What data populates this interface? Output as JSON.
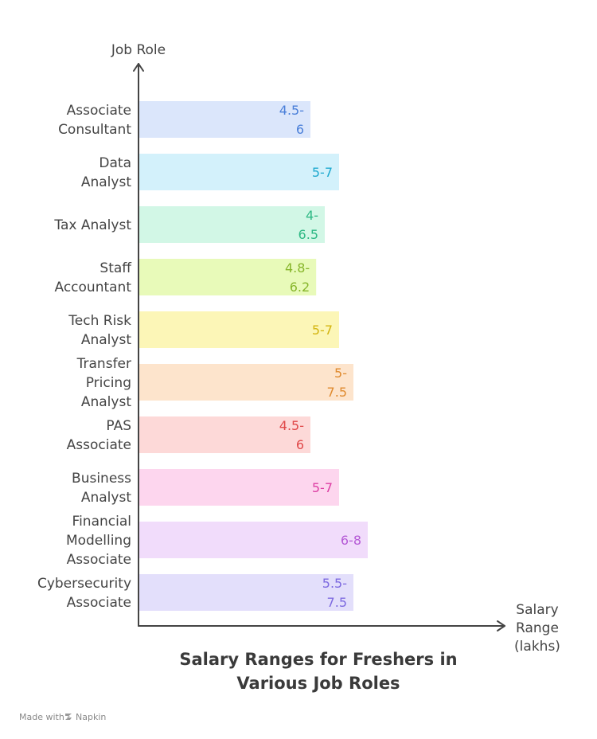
{
  "chart_data": {
    "type": "bar",
    "orientation": "horizontal",
    "title": "Salary Ranges for Freshers in Various Job Roles",
    "title_lines": [
      "Salary Ranges for Freshers in",
      "Various Job Roles"
    ],
    "ylabel": "Job Role",
    "xlabel": "Salary Range (lakhs)",
    "xlabel_lines": [
      "Salary",
      "Range",
      "(lakhs)"
    ],
    "grid": false,
    "categories": [
      {
        "lines": [
          "Associate",
          "Consultant"
        ],
        "label": "4.5-6",
        "label_lines": [
          "4.5-",
          "6"
        ],
        "low": 4.5,
        "high": 6,
        "color": "#4a7fd9",
        "fill": "#dbe6fb"
      },
      {
        "lines": [
          "Data",
          "Analyst"
        ],
        "label": "5-7",
        "label_lines": [
          "5-7"
        ],
        "low": 5,
        "high": 7,
        "color": "#1ea9cf",
        "fill": "#d3f1fb"
      },
      {
        "lines": [
          "Tax Analyst"
        ],
        "label": "4-6.5",
        "label_lines": [
          "4-",
          "6.5"
        ],
        "low": 4,
        "high": 6.5,
        "color": "#2fb985",
        "fill": "#d2f7e6"
      },
      {
        "lines": [
          "Staff",
          "Accountant"
        ],
        "label": "4.8-6.2",
        "label_lines": [
          "4.8-",
          "6.2"
        ],
        "low": 4.8,
        "high": 6.2,
        "color": "#86b52a",
        "fill": "#e8fab9"
      },
      {
        "lines": [
          "Tech Risk",
          "Analyst"
        ],
        "label": "5-7",
        "label_lines": [
          "5-7"
        ],
        "low": 5,
        "high": 7,
        "color": "#d3b40f",
        "fill": "#fcf6b7"
      },
      {
        "lines": [
          "Transfer",
          "Pricing",
          "Analyst"
        ],
        "label": "5-7.5",
        "label_lines": [
          "5-",
          "7.5"
        ],
        "low": 5,
        "high": 7.5,
        "color": "#df8a2e",
        "fill": "#fde4cc"
      },
      {
        "lines": [
          "PAS",
          "Associate"
        ],
        "label": "4.5-6",
        "label_lines": [
          "4.5-",
          "6"
        ],
        "low": 4.5,
        "high": 6,
        "color": "#e04848",
        "fill": "#fdd9d8"
      },
      {
        "lines": [
          "Business",
          "Analyst"
        ],
        "label": "5-7",
        "label_lines": [
          "5-7"
        ],
        "low": 5,
        "high": 7,
        "color": "#dd3fa4",
        "fill": "#fdd6ee"
      },
      {
        "lines": [
          "Financial",
          "Modelling",
          "Associate"
        ],
        "label": "6-8",
        "label_lines": [
          "6-8"
        ],
        "low": 6,
        "high": 8,
        "color": "#b55ad6",
        "fill": "#f1dcfb"
      },
      {
        "lines": [
          "Cybersecurity",
          "Associate"
        ],
        "label": "5.5-7.5",
        "label_lines": [
          "5.5-",
          "7.5"
        ],
        "low": 5.5,
        "high": 7.5,
        "color": "#7d6ae0",
        "fill": "#e3dffb"
      }
    ]
  },
  "footer": {
    "made_with": "Made with",
    "brand": "Napkin"
  }
}
